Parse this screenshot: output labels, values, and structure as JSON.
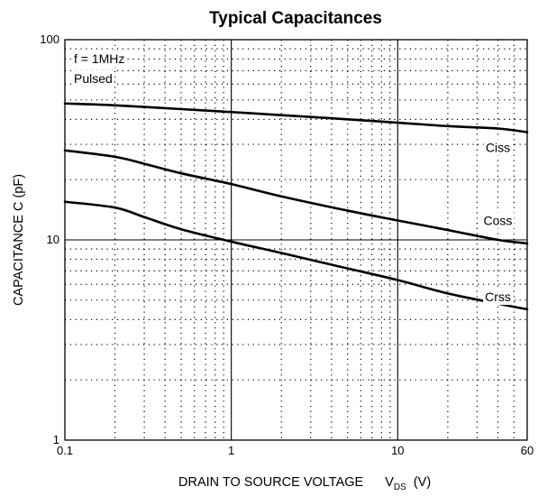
{
  "chart_data": {
    "type": "line",
    "title": "Typical Capacitances",
    "xlabel": {
      "main": "DRAIN TO SOURCE VOLTAGE",
      "symbol": "V",
      "subscript": "DS",
      "unit": "(V)"
    },
    "ylabel": "CAPACITANCE    C  (pF)",
    "x_scale": "log",
    "y_scale": "log",
    "xlim": [
      0.1,
      60
    ],
    "ylim": [
      1,
      100
    ],
    "x_ticks": [
      {
        "value": 0.1,
        "label": "0.1"
      },
      {
        "value": 1,
        "label": "1"
      },
      {
        "value": 10,
        "label": "10"
      },
      {
        "value": 60,
        "label": "60"
      }
    ],
    "y_ticks": [
      {
        "value": 1,
        "label": "1"
      },
      {
        "value": 10,
        "label": "10"
      },
      {
        "value": 100,
        "label": "100"
      }
    ],
    "grid": "dotted minor, solid major",
    "annotations": [
      "f = 1MHz",
      "Pulsed"
    ],
    "series": [
      {
        "name": "Ciss",
        "label_at": [
          40,
          29
        ],
        "points": [
          [
            0.1,
            48
          ],
          [
            0.2,
            47
          ],
          [
            0.5,
            45
          ],
          [
            1,
            43.5
          ],
          [
            2,
            42
          ],
          [
            5,
            40
          ],
          [
            10,
            38.5
          ],
          [
            20,
            37
          ],
          [
            40,
            36
          ],
          [
            60,
            34.5
          ]
        ]
      },
      {
        "name": "Coss",
        "label_at": [
          40,
          12.5
        ],
        "points": [
          [
            0.1,
            28
          ],
          [
            0.2,
            26
          ],
          [
            0.3,
            24
          ],
          [
            0.5,
            21.5
          ],
          [
            1,
            19
          ],
          [
            2,
            16.5
          ],
          [
            5,
            14
          ],
          [
            10,
            12.5
          ],
          [
            20,
            11.2
          ],
          [
            40,
            10
          ],
          [
            60,
            9.6
          ]
        ]
      },
      {
        "name": "Crss",
        "label_at": [
          40,
          5.2
        ],
        "points": [
          [
            0.1,
            15.5
          ],
          [
            0.2,
            14.5
          ],
          [
            0.3,
            13
          ],
          [
            0.5,
            11.3
          ],
          [
            1,
            9.8
          ],
          [
            2,
            8.6
          ],
          [
            5,
            7.2
          ],
          [
            10,
            6.3
          ],
          [
            20,
            5.4
          ],
          [
            40,
            4.8
          ],
          [
            60,
            4.5
          ]
        ]
      }
    ]
  }
}
